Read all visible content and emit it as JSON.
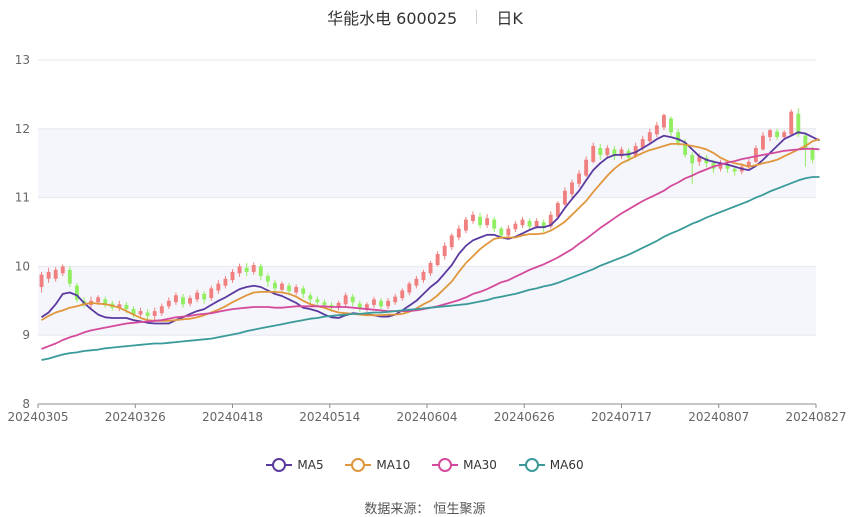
{
  "header": {
    "title": "华能水电 600025",
    "period": "日K"
  },
  "legend": [
    {
      "label": "MA5",
      "color": "#5b3aa0"
    },
    {
      "label": "MA10",
      "color": "#e0963c"
    },
    {
      "label": "MA30",
      "color": "#d44a9c"
    },
    {
      "label": "MA60",
      "color": "#3a9a9a"
    }
  ],
  "source": "数据来源：  恒生聚源",
  "colors": {
    "up": "#f08080",
    "down": "#90ee60",
    "grid": "#e6e8ee",
    "band": "#f5f6fb"
  },
  "chart_data": {
    "type": "candlestick",
    "ylim": [
      8,
      13
    ],
    "yticks": [
      "13",
      "12",
      "11",
      "10",
      "9",
      "8"
    ],
    "xticks": [
      "20240305",
      "20240326",
      "20240418",
      "20240514",
      "20240604",
      "20240626",
      "20240717",
      "20240807",
      "20240827"
    ],
    "series": [
      {
        "name": "MA5",
        "values": [
          9.26,
          9.33,
          9.45,
          9.6,
          9.62,
          9.58,
          9.47,
          9.38,
          9.3,
          9.26,
          9.25,
          9.25,
          9.25,
          9.22,
          9.2,
          9.18,
          9.17,
          9.17,
          9.17,
          9.22,
          9.26,
          9.31,
          9.35,
          9.38,
          9.44,
          9.5,
          9.55,
          9.61,
          9.67,
          9.7,
          9.72,
          9.7,
          9.65,
          9.6,
          9.57,
          9.52,
          9.47,
          9.4,
          9.38,
          9.35,
          9.3,
          9.26,
          9.25,
          9.29,
          9.32,
          9.31,
          9.3,
          9.29,
          9.27,
          9.27,
          9.3,
          9.36,
          9.43,
          9.5,
          9.6,
          9.7,
          9.78,
          9.9,
          10.02,
          10.18,
          10.3,
          10.38,
          10.42,
          10.46,
          10.46,
          10.42,
          10.4,
          10.43,
          10.48,
          10.53,
          10.57,
          10.57,
          10.6,
          10.7,
          10.85,
          10.98,
          11.1,
          11.25,
          11.4,
          11.5,
          11.58,
          11.62,
          11.62,
          11.63,
          11.66,
          11.72,
          11.78,
          11.85,
          11.9,
          11.88,
          11.85,
          11.8,
          11.7,
          11.6,
          11.55,
          11.52,
          11.5,
          11.48,
          11.45,
          11.42,
          11.4,
          11.46,
          11.55,
          11.65,
          11.75,
          11.85,
          11.9,
          11.95,
          11.93,
          11.88,
          11.83
        ]
      },
      {
        "name": "MA10",
        "values": [
          9.22,
          9.28,
          9.33,
          9.36,
          9.4,
          9.42,
          9.45,
          9.47,
          9.46,
          9.45,
          9.43,
          9.4,
          9.35,
          9.3,
          9.25,
          9.22,
          9.21,
          9.21,
          9.21,
          9.22,
          9.23,
          9.24,
          9.26,
          9.29,
          9.33,
          9.37,
          9.42,
          9.48,
          9.53,
          9.58,
          9.62,
          9.63,
          9.63,
          9.63,
          9.62,
          9.6,
          9.56,
          9.5,
          9.45,
          9.42,
          9.4,
          9.36,
          9.33,
          9.32,
          9.31,
          9.3,
          9.29,
          9.29,
          9.29,
          9.3,
          9.3,
          9.31,
          9.34,
          9.39,
          9.45,
          9.5,
          9.58,
          9.68,
          9.78,
          9.92,
          10.05,
          10.15,
          10.25,
          10.33,
          10.4,
          10.42,
          10.42,
          10.42,
          10.45,
          10.47,
          10.47,
          10.48,
          10.52,
          10.58,
          10.65,
          10.75,
          10.85,
          10.95,
          11.08,
          11.2,
          11.32,
          11.42,
          11.5,
          11.55,
          11.6,
          11.65,
          11.69,
          11.72,
          11.75,
          11.78,
          11.78,
          11.77,
          11.75,
          11.73,
          11.7,
          11.65,
          11.58,
          11.53,
          11.5,
          11.48,
          11.45,
          11.47,
          11.5,
          11.52,
          11.55,
          11.6,
          11.65,
          11.7,
          11.75,
          11.82,
          11.85
        ]
      },
      {
        "name": "MA30",
        "values": [
          8.8,
          8.84,
          8.88,
          8.93,
          8.97,
          9.0,
          9.04,
          9.07,
          9.09,
          9.11,
          9.13,
          9.15,
          9.17,
          9.18,
          9.19,
          9.2,
          9.21,
          9.22,
          9.24,
          9.26,
          9.27,
          9.28,
          9.3,
          9.31,
          9.32,
          9.34,
          9.36,
          9.38,
          9.39,
          9.4,
          9.41,
          9.41,
          9.41,
          9.4,
          9.4,
          9.41,
          9.42,
          9.42,
          9.42,
          9.42,
          9.42,
          9.41,
          9.41,
          9.41,
          9.4,
          9.39,
          9.38,
          9.37,
          9.36,
          9.35,
          9.35,
          9.35,
          9.35,
          9.36,
          9.38,
          9.4,
          9.42,
          9.45,
          9.48,
          9.51,
          9.55,
          9.6,
          9.63,
          9.67,
          9.72,
          9.77,
          9.8,
          9.85,
          9.9,
          9.95,
          9.99,
          10.03,
          10.08,
          10.13,
          10.19,
          10.25,
          10.33,
          10.4,
          10.48,
          10.56,
          10.63,
          10.7,
          10.77,
          10.83,
          10.89,
          10.95,
          11.0,
          11.05,
          11.1,
          11.17,
          11.22,
          11.28,
          11.32,
          11.37,
          11.41,
          11.45,
          11.48,
          11.51,
          11.53,
          11.56,
          11.58,
          11.6,
          11.62,
          11.64,
          11.66,
          11.68,
          11.69,
          11.7,
          11.71,
          11.71,
          11.7
        ]
      },
      {
        "name": "MA60",
        "values": [
          8.64,
          8.66,
          8.69,
          8.72,
          8.74,
          8.75,
          8.77,
          8.78,
          8.79,
          8.81,
          8.82,
          8.83,
          8.84,
          8.85,
          8.86,
          8.87,
          8.88,
          8.88,
          8.89,
          8.9,
          8.91,
          8.92,
          8.93,
          8.94,
          8.95,
          8.97,
          8.99,
          9.01,
          9.03,
          9.06,
          9.08,
          9.1,
          9.12,
          9.14,
          9.16,
          9.18,
          9.2,
          9.22,
          9.24,
          9.25,
          9.27,
          9.28,
          9.29,
          9.3,
          9.31,
          9.31,
          9.32,
          9.33,
          9.33,
          9.34,
          9.35,
          9.36,
          9.37,
          9.38,
          9.39,
          9.4,
          9.41,
          9.42,
          9.43,
          9.44,
          9.45,
          9.47,
          9.49,
          9.51,
          9.54,
          9.56,
          9.58,
          9.6,
          9.63,
          9.66,
          9.68,
          9.71,
          9.73,
          9.76,
          9.8,
          9.84,
          9.88,
          9.92,
          9.96,
          10.01,
          10.05,
          10.09,
          10.13,
          10.17,
          10.22,
          10.27,
          10.32,
          10.37,
          10.43,
          10.48,
          10.52,
          10.57,
          10.62,
          10.66,
          10.71,
          10.75,
          10.79,
          10.83,
          10.87,
          10.91,
          10.95,
          11.0,
          11.04,
          11.09,
          11.13,
          11.17,
          11.21,
          11.25,
          11.28,
          11.3,
          11.3
        ]
      }
    ],
    "candles": [
      [
        9.7,
        9.88,
        9.62,
        9.92
      ],
      [
        9.82,
        9.92,
        9.76,
        9.98
      ],
      [
        9.82,
        9.95,
        9.78,
        9.99
      ],
      [
        9.9,
        10.0,
        9.86,
        10.03
      ],
      [
        9.95,
        9.75,
        9.7,
        10.0
      ],
      [
        9.72,
        9.52,
        9.48,
        9.76
      ],
      [
        9.5,
        9.45,
        9.4,
        9.55
      ],
      [
        9.44,
        9.5,
        9.4,
        9.56
      ],
      [
        9.48,
        9.55,
        9.44,
        9.58
      ],
      [
        9.52,
        9.45,
        9.4,
        9.56
      ],
      [
        9.46,
        9.4,
        9.36,
        9.5
      ],
      [
        9.4,
        9.45,
        9.35,
        9.5
      ],
      [
        9.44,
        9.38,
        9.32,
        9.48
      ],
      [
        9.38,
        9.3,
        9.26,
        9.42
      ],
      [
        9.3,
        9.35,
        9.26,
        9.4
      ],
      [
        9.33,
        9.28,
        9.22,
        9.38
      ],
      [
        9.28,
        9.35,
        9.22,
        9.4
      ],
      [
        9.32,
        9.42,
        9.28,
        9.46
      ],
      [
        9.42,
        9.5,
        9.38,
        9.55
      ],
      [
        9.48,
        9.58,
        9.44,
        9.62
      ],
      [
        9.55,
        9.45,
        9.4,
        9.6
      ],
      [
        9.46,
        9.54,
        9.42,
        9.58
      ],
      [
        9.52,
        9.62,
        9.48,
        9.66
      ],
      [
        9.6,
        9.52,
        9.46,
        9.64
      ],
      [
        9.54,
        9.68,
        9.5,
        9.72
      ],
      [
        9.65,
        9.75,
        9.6,
        9.8
      ],
      [
        9.72,
        9.82,
        9.68,
        9.86
      ],
      [
        9.8,
        9.92,
        9.76,
        9.96
      ],
      [
        9.9,
        10.0,
        9.85,
        10.04
      ],
      [
        9.98,
        9.92,
        9.86,
        10.05
      ],
      [
        9.92,
        10.02,
        9.88,
        10.06
      ],
      [
        10.0,
        9.86,
        9.8,
        10.04
      ],
      [
        9.86,
        9.78,
        9.7,
        9.9
      ],
      [
        9.76,
        9.68,
        9.62,
        9.8
      ],
      [
        9.66,
        9.75,
        9.62,
        9.78
      ],
      [
        9.72,
        9.64,
        9.58,
        9.76
      ],
      [
        9.62,
        9.7,
        9.58,
        9.74
      ],
      [
        9.68,
        9.6,
        9.54,
        9.72
      ],
      [
        9.58,
        9.52,
        9.46,
        9.62
      ],
      [
        9.52,
        9.48,
        9.42,
        9.56
      ],
      [
        9.48,
        9.44,
        9.38,
        9.52
      ],
      [
        9.44,
        9.4,
        9.34,
        9.48
      ],
      [
        9.4,
        9.47,
        9.36,
        9.5
      ],
      [
        9.45,
        9.58,
        9.42,
        9.62
      ],
      [
        9.56,
        9.48,
        9.42,
        9.6
      ],
      [
        9.46,
        9.38,
        9.34,
        9.5
      ],
      [
        9.38,
        9.45,
        9.34,
        9.48
      ],
      [
        9.44,
        9.52,
        9.4,
        9.56
      ],
      [
        9.5,
        9.42,
        9.38,
        9.54
      ],
      [
        9.42,
        9.5,
        9.38,
        9.54
      ],
      [
        9.48,
        9.56,
        9.44,
        9.6
      ],
      [
        9.54,
        9.65,
        9.5,
        9.68
      ],
      [
        9.62,
        9.75,
        9.58,
        9.78
      ],
      [
        9.72,
        9.82,
        9.68,
        9.86
      ],
      [
        9.8,
        9.92,
        9.76,
        9.95
      ],
      [
        9.9,
        10.05,
        9.86,
        10.08
      ],
      [
        10.02,
        10.18,
        10.0,
        10.22
      ],
      [
        10.15,
        10.3,
        10.1,
        10.35
      ],
      [
        10.28,
        10.45,
        10.24,
        10.48
      ],
      [
        10.42,
        10.55,
        10.38,
        10.6
      ],
      [
        10.52,
        10.68,
        10.48,
        10.72
      ],
      [
        10.66,
        10.75,
        10.62,
        10.8
      ],
      [
        10.72,
        10.6,
        10.55,
        10.78
      ],
      [
        10.6,
        10.7,
        10.56,
        10.76
      ],
      [
        10.68,
        10.55,
        10.5,
        10.72
      ],
      [
        10.55,
        10.45,
        10.4,
        10.58
      ],
      [
        10.45,
        10.55,
        10.42,
        10.6
      ],
      [
        10.54,
        10.62,
        10.5,
        10.66
      ],
      [
        10.6,
        10.68,
        10.56,
        10.72
      ],
      [
        10.66,
        10.58,
        10.52,
        10.7
      ],
      [
        10.58,
        10.66,
        10.55,
        10.7
      ],
      [
        10.64,
        10.56,
        10.5,
        10.68
      ],
      [
        10.58,
        10.75,
        10.55,
        10.8
      ],
      [
        10.72,
        10.92,
        10.7,
        10.95
      ],
      [
        10.9,
        11.1,
        10.88,
        11.15
      ],
      [
        11.05,
        11.22,
        11.0,
        11.26
      ],
      [
        11.2,
        11.35,
        11.15,
        11.4
      ],
      [
        11.32,
        11.55,
        11.3,
        11.6
      ],
      [
        11.52,
        11.75,
        11.5,
        11.8
      ],
      [
        11.72,
        11.62,
        11.55,
        11.78
      ],
      [
        11.62,
        11.72,
        11.58,
        11.76
      ],
      [
        11.7,
        11.6,
        11.55,
        11.75
      ],
      [
        11.6,
        11.7,
        11.56,
        11.74
      ],
      [
        11.68,
        11.58,
        11.52,
        11.72
      ],
      [
        11.6,
        11.75,
        11.58,
        11.8
      ],
      [
        11.72,
        11.85,
        11.68,
        11.9
      ],
      [
        11.82,
        11.95,
        11.78,
        12.0
      ],
      [
        11.92,
        12.05,
        11.88,
        12.1
      ],
      [
        12.02,
        12.2,
        11.98,
        12.22
      ],
      [
        12.15,
        11.95,
        11.9,
        12.18
      ],
      [
        11.95,
        11.8,
        11.75,
        12.0
      ],
      [
        11.8,
        11.62,
        11.58,
        11.85
      ],
      [
        11.62,
        11.5,
        11.2,
        11.66
      ],
      [
        11.52,
        11.6,
        11.46,
        11.64
      ],
      [
        11.58,
        11.5,
        11.44,
        11.62
      ],
      [
        11.5,
        11.42,
        11.36,
        11.55
      ],
      [
        11.42,
        11.5,
        11.38,
        11.55
      ],
      [
        11.48,
        11.42,
        11.36,
        11.52
      ],
      [
        11.42,
        11.38,
        11.32,
        11.46
      ],
      [
        11.38,
        11.45,
        11.34,
        11.5
      ],
      [
        11.44,
        11.52,
        11.4,
        11.56
      ],
      [
        11.52,
        11.72,
        11.5,
        11.76
      ],
      [
        11.7,
        11.9,
        11.68,
        11.95
      ],
      [
        11.88,
        11.98,
        11.82,
        12.0
      ],
      [
        11.96,
        11.88,
        11.84,
        12.0
      ],
      [
        11.88,
        11.95,
        11.84,
        11.98
      ],
      [
        11.92,
        12.25,
        11.9,
        12.28
      ],
      [
        12.22,
        11.92,
        11.88,
        12.3
      ],
      [
        11.9,
        11.7,
        11.45,
        11.95
      ],
      [
        11.7,
        11.55,
        11.5,
        11.74
      ]
    ]
  }
}
